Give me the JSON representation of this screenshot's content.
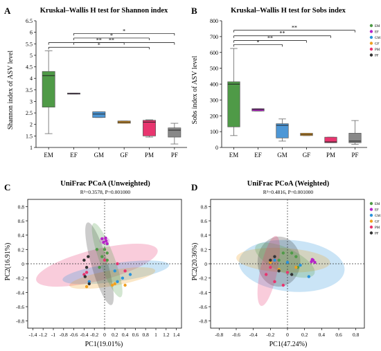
{
  "colors": {
    "EM": "#4f9a47",
    "EF": "#b624c8",
    "GM": "#2b93dc",
    "GF": "#f0a020",
    "PM": "#e8356f",
    "PF": "#333333",
    "GM_box": "#4d97d6",
    "PF_box": "#888888"
  },
  "legend": [
    "EM",
    "EF",
    "GM",
    "GF",
    "PM",
    "PF"
  ],
  "chart_data": [
    {
      "type": "box",
      "panel_label": "A",
      "title": "Kruskal–Wallis H test for Shannon index",
      "ylabel": "Shannon index of ASV level",
      "categories": [
        "EM",
        "EF",
        "GM",
        "GF",
        "PM",
        "PF"
      ],
      "ylim": [
        1,
        6.5
      ],
      "yticks": [
        "1",
        "1.5",
        "2",
        "2.5",
        "3",
        "3.5",
        "4",
        "4.5",
        "5",
        "5.5",
        "6",
        "6.5"
      ],
      "boxes": [
        {
          "name": "EM",
          "min": 1.6,
          "q1": 2.75,
          "median": 4.12,
          "q3": 4.3,
          "max": 5.2
        },
        {
          "name": "EF",
          "min": 3.32,
          "q1": 3.32,
          "median": 3.34,
          "q3": 3.36,
          "max": 3.36
        },
        {
          "name": "GM",
          "min": 2.3,
          "q1": 2.3,
          "median": 2.45,
          "q3": 2.55,
          "max": 2.55
        },
        {
          "name": "GF",
          "min": 2.05,
          "q1": 2.05,
          "median": 2.1,
          "q3": 2.15,
          "max": 2.15
        },
        {
          "name": "PM",
          "min": 1.45,
          "q1": 1.5,
          "median": 2.1,
          "q3": 2.18,
          "max": 2.2
        },
        {
          "name": "PF",
          "min": 1.15,
          "q1": 1.45,
          "median": 1.75,
          "q3": 1.85,
          "max": 2.05
        }
      ],
      "significance": [
        {
          "from": "EF",
          "to": "PF",
          "y": 5.95,
          "label": "*"
        },
        {
          "from": "EF",
          "to": "PM",
          "y": 5.75,
          "label": "*"
        },
        {
          "from": "EF",
          "to": "GF",
          "y": 5.55,
          "label": "**"
        },
        {
          "from": "EM",
          "to": "PF",
          "y": 5.55,
          "label": "**"
        },
        {
          "from": "EM",
          "to": "PM",
          "y": 5.35,
          "label": "*"
        }
      ]
    },
    {
      "type": "box",
      "panel_label": "B",
      "title": "Kruskal–Wallis H test for Sobs index",
      "ylabel": "Sobs index of ASV level",
      "categories": [
        "EM",
        "EF",
        "GM",
        "GF",
        "PM",
        "PF"
      ],
      "ylim": [
        0,
        800
      ],
      "yticks": [
        "0",
        "100",
        "200",
        "300",
        "400",
        "500",
        "600",
        "700",
        "800"
      ],
      "boxes": [
        {
          "name": "EM",
          "min": 75,
          "q1": 130,
          "median": 400,
          "q3": 415,
          "max": 625
        },
        {
          "name": "EF",
          "min": 230,
          "q1": 230,
          "median": 240,
          "q3": 245,
          "max": 245
        },
        {
          "name": "GM",
          "min": 40,
          "q1": 60,
          "median": 140,
          "q3": 150,
          "max": 180
        },
        {
          "name": "GF",
          "min": 75,
          "q1": 75,
          "median": 82,
          "q3": 90,
          "max": 90
        },
        {
          "name": "PM",
          "min": 30,
          "q1": 30,
          "median": 35,
          "q3": 65,
          "max": 65
        },
        {
          "name": "PF",
          "min": 20,
          "q1": 30,
          "median": 40,
          "q3": 90,
          "max": 170
        }
      ],
      "significance": [
        {
          "from": "EM",
          "to": "PF",
          "y": 740,
          "label": "**"
        },
        {
          "from": "EM",
          "to": "PM",
          "y": 705,
          "label": "**"
        },
        {
          "from": "EM",
          "to": "GF",
          "y": 675,
          "label": "**"
        },
        {
          "from": "EM",
          "to": "GM",
          "y": 650,
          "label": "*"
        }
      ]
    },
    {
      "type": "scatter",
      "panel_label": "C",
      "title": "UniFrac PCoA (Unweighted)",
      "subtitle": "R²=0.3578, P=0.001000",
      "xlabel": "PC1(19.01%)",
      "ylabel": "PC2(16.91%)",
      "xlim": [
        -1.5,
        1.5
      ],
      "ylim": [
        -0.9,
        0.9
      ],
      "xticks": [
        "-1.4",
        "-1.2",
        "-1",
        "-0.8",
        "-0.6",
        "-0.4",
        "-0.2",
        "0",
        "0.2",
        "0.4",
        "0.6",
        "0.8",
        "1",
        "1.2",
        "1.4"
      ],
      "yticks": [
        "-0.8",
        "-0.6",
        "-0.4",
        "-0.2",
        "0",
        "0.2",
        "0.4",
        "0.6",
        "0.8"
      ],
      "ellipses": [
        {
          "name": "PM",
          "cx": -0.15,
          "cy": -0.02,
          "rx": 1.22,
          "ry": 0.22,
          "angle": 14
        },
        {
          "name": "GM",
          "cx": 0.22,
          "cy": -0.12,
          "rx": 1.05,
          "ry": 0.13,
          "angle": 8
        },
        {
          "name": "GF",
          "cx": 0.15,
          "cy": -0.2,
          "rx": 0.85,
          "ry": 0.11,
          "angle": 10
        },
        {
          "name": "PF",
          "cx": -0.1,
          "cy": 0.0,
          "rx": 0.16,
          "ry": 0.6,
          "angle": 16
        },
        {
          "name": "EM",
          "cx": 0.05,
          "cy": 0.05,
          "rx": 0.15,
          "ry": 0.55,
          "angle": 20
        },
        {
          "name": "EF",
          "cx": 0.0,
          "cy": 0.32,
          "rx": 0.1,
          "ry": 0.05,
          "angle": 0
        }
      ],
      "series": [
        {
          "name": "EM",
          "points": [
            [
              -0.15,
              0.2
            ],
            [
              -0.05,
              0.1
            ],
            [
              0.05,
              0.15
            ],
            [
              -0.1,
              -0.05
            ],
            [
              0.0,
              0.2
            ],
            [
              0.05,
              0.05
            ]
          ]
        },
        {
          "name": "EF",
          "points": [
            [
              -0.05,
              0.35
            ],
            [
              0.02,
              0.36
            ],
            [
              -0.02,
              0.3
            ],
            [
              0.05,
              0.28
            ],
            [
              0.03,
              0.32
            ]
          ]
        },
        {
          "name": "GM",
          "points": [
            [
              0.2,
              -0.1
            ],
            [
              0.35,
              -0.2
            ],
            [
              -0.3,
              -0.25
            ],
            [
              0.5,
              -0.15
            ],
            [
              0.25,
              -0.25
            ]
          ]
        },
        {
          "name": "GF",
          "points": [
            [
              0.15,
              -0.3
            ],
            [
              0.2,
              -0.28
            ],
            [
              -0.35,
              -0.32
            ],
            [
              0.4,
              -0.3
            ]
          ]
        },
        {
          "name": "PM",
          "points": [
            [
              -0.4,
              -0.15
            ],
            [
              -0.35,
              -0.12
            ],
            [
              0.25,
              0.0
            ],
            [
              0.4,
              -0.1
            ],
            [
              0.0,
              0.05
            ]
          ]
        },
        {
          "name": "PF",
          "points": [
            [
              -0.4,
              0.05
            ],
            [
              -0.35,
              -0.05
            ],
            [
              -0.38,
              -0.18
            ],
            [
              -0.3,
              -0.28
            ],
            [
              -0.32,
              0.1
            ]
          ]
        }
      ]
    },
    {
      "type": "scatter",
      "panel_label": "D",
      "title": "UniFrac PCoA (Weighted)",
      "subtitle": "R²=0.4816, P=0.001000",
      "xlabel": "PC1(47.24%)",
      "ylabel": "PC2(20.36%)",
      "xlim": [
        -0.9,
        0.9
      ],
      "ylim": [
        -0.9,
        0.9
      ],
      "xticks": [
        "-0.8",
        "-0.6",
        "-0.4",
        "-0.2",
        "0",
        "0.2",
        "0.4",
        "0.6",
        "0.8"
      ],
      "yticks": [
        "-0.8",
        "-0.6",
        "-0.4",
        "-0.2",
        "0",
        "0.2",
        "0.4",
        "0.6",
        "0.8"
      ],
      "ellipses": [
        {
          "name": "GM",
          "cx": 0.05,
          "cy": -0.03,
          "rx": 0.62,
          "ry": 0.36,
          "angle": -5
        },
        {
          "name": "GF",
          "cx": -0.05,
          "cy": 0.05,
          "rx": 0.55,
          "ry": 0.17,
          "angle": -3
        },
        {
          "name": "PF",
          "cx": -0.1,
          "cy": 0.03,
          "rx": 0.25,
          "ry": 0.35,
          "angle": 0
        },
        {
          "name": "EM",
          "cx": -0.03,
          "cy": 0.05,
          "rx": 0.38,
          "ry": 0.17,
          "angle": -25
        },
        {
          "name": "PM",
          "cx": -0.22,
          "cy": -0.1,
          "rx": 0.1,
          "ry": 0.5,
          "angle": -12
        }
      ],
      "series": [
        {
          "name": "EM",
          "points": [
            [
              -0.05,
              0.15
            ],
            [
              0.05,
              0.15
            ],
            [
              -0.1,
              0.05
            ],
            [
              0.1,
              0.1
            ],
            [
              0.12,
              -0.05
            ]
          ]
        },
        {
          "name": "EF",
          "points": [
            [
              0.28,
              0.03
            ],
            [
              0.3,
              0.05
            ],
            [
              0.32,
              0.02
            ],
            [
              0.29,
              0.06
            ]
          ]
        },
        {
          "name": "GM",
          "points": [
            [
              0.15,
              -0.02
            ],
            [
              0.25,
              -0.18
            ],
            [
              -0.15,
              0.05
            ],
            [
              0.0,
              0.02
            ]
          ]
        },
        {
          "name": "GF",
          "points": [
            [
              -0.2,
              0.02
            ],
            [
              -0.1,
              -0.08
            ],
            [
              0.1,
              -0.05
            ]
          ]
        },
        {
          "name": "PM",
          "points": [
            [
              -0.2,
              -0.05
            ],
            [
              -0.15,
              -0.25
            ],
            [
              -0.05,
              -0.3
            ],
            [
              -0.25,
              -0.15
            ],
            [
              0.0,
              -0.12
            ]
          ]
        },
        {
          "name": "PF",
          "points": [
            [
              -0.15,
              0.1
            ],
            [
              -0.1,
              -0.1
            ],
            [
              0.05,
              -0.15
            ],
            [
              -0.2,
              0.05
            ]
          ]
        }
      ]
    }
  ]
}
